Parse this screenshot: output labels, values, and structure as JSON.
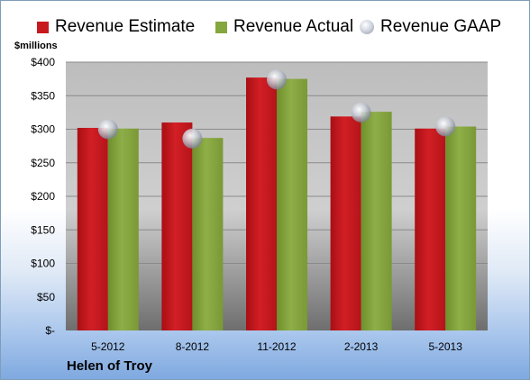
{
  "chart_data": {
    "type": "bar",
    "categories": [
      "5-2012",
      "8-2012",
      "11-2012",
      "2-2013",
      "5-2013"
    ],
    "series": [
      {
        "name": "Revenue Estimate",
        "kind": "bar",
        "color": "#c8191f",
        "values": [
          302,
          310,
          377,
          319,
          301
        ]
      },
      {
        "name": "Revenue Actual",
        "kind": "bar",
        "color": "#86a63f",
        "values": [
          301,
          287,
          375,
          326,
          304
        ]
      },
      {
        "name": "Revenue GAAP",
        "kind": "marker",
        "color": "#c3c7d1",
        "values": [
          300,
          286,
          374,
          325,
          304
        ]
      }
    ],
    "ylabel": "$millions",
    "ylim": [
      0,
      400
    ],
    "yticks": [
      0,
      50,
      100,
      150,
      200,
      250,
      300,
      350,
      400
    ],
    "ytick_labels": [
      "$-",
      "$50",
      "$100",
      "$150",
      "$200",
      "$250",
      "$300",
      "$350",
      "$400"
    ],
    "grid": true,
    "legend_position": "top"
  },
  "company": "Helen of Troy"
}
